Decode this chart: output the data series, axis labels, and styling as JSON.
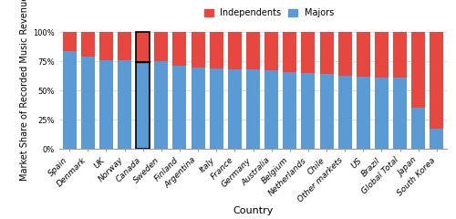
{
  "countries": [
    "Spain",
    "Denmark",
    "UK",
    "Norway",
    "Canada",
    "Sweden",
    "Finland",
    "Argentina",
    "Italy",
    "France",
    "Germany",
    "Australia",
    "Belgium",
    "Netherlands",
    "Chile",
    "Other markets",
    "US",
    "Brazil",
    "Global Total",
    "Japan",
    "South Korea"
  ],
  "majors": [
    84,
    79,
    76,
    76,
    74,
    75,
    71,
    70,
    69,
    68,
    68,
    67,
    66,
    65,
    64,
    63,
    62,
    61,
    61,
    35,
    17
  ],
  "independents": [
    16,
    21,
    24,
    24,
    26,
    25,
    29,
    30,
    31,
    32,
    32,
    33,
    34,
    35,
    36,
    37,
    38,
    39,
    39,
    65,
    83
  ],
  "color_majors": "#5b9bd5",
  "color_independents": "#e8473f",
  "color_highlight_edge": "#000000",
  "highlight_index": 4,
  "ylabel": "Market Share of Recorded Music Revenue",
  "xlabel": "Country",
  "yticks": [
    0,
    25,
    50,
    75,
    100
  ],
  "ytick_labels": [
    "0%",
    "25%",
    "50%",
    "75%",
    "100%"
  ],
  "legend_labels": [
    "Independents",
    "Majors"
  ],
  "background_color": "#ffffff",
  "grid_color": "#dddddd",
  "axis_fontsize": 7,
  "tick_fontsize": 6,
  "label_fontsize": 6.5
}
